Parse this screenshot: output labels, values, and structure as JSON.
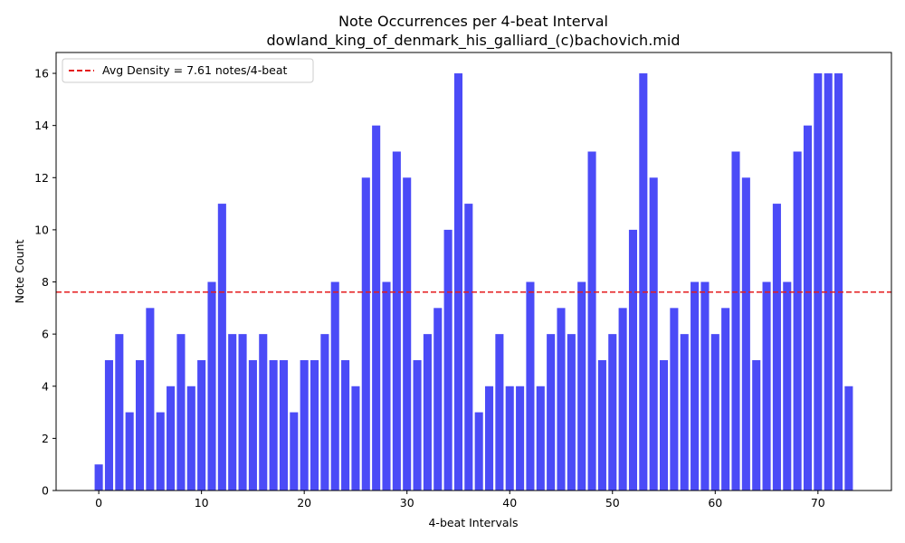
{
  "chart_data": {
    "type": "bar",
    "title": "Note Occurrences per 4-beat Interval",
    "subtitle": "dowland_king_of_denmark_his_galliard_(c)bachovich.mid",
    "xlabel": "4-beat Intervals",
    "ylabel": "Note Count",
    "x": [
      0,
      1,
      2,
      3,
      4,
      5,
      6,
      7,
      8,
      9,
      10,
      11,
      12,
      13,
      14,
      15,
      16,
      17,
      18,
      19,
      20,
      21,
      22,
      23,
      24,
      25,
      26,
      27,
      28,
      29,
      30,
      31,
      32,
      33,
      34,
      35,
      36,
      37,
      38,
      39,
      40,
      41,
      42,
      43,
      44,
      45,
      46,
      47,
      48,
      49,
      50,
      51,
      52,
      53,
      54,
      55,
      56,
      57,
      58,
      59,
      60,
      61,
      62,
      63,
      64,
      65,
      66,
      67,
      68,
      69,
      70,
      71,
      72,
      73
    ],
    "values": [
      1,
      5,
      6,
      3,
      5,
      7,
      3,
      4,
      6,
      4,
      5,
      8,
      11,
      6,
      6,
      5,
      6,
      5,
      5,
      3,
      5,
      5,
      6,
      8,
      5,
      4,
      12,
      14,
      8,
      13,
      12,
      5,
      6,
      7,
      10,
      16,
      11,
      3,
      4,
      6,
      4,
      4,
      8,
      4,
      6,
      7,
      6,
      8,
      13,
      5,
      6,
      7,
      10,
      16,
      12,
      5,
      7,
      6,
      8,
      8,
      6,
      7,
      13,
      12,
      5,
      8,
      11,
      8,
      13,
      14,
      16,
      16,
      16,
      4
    ],
    "xlim": [
      -4.15,
      77.15
    ],
    "ylim": [
      0,
      16.8
    ],
    "xticks": [
      0,
      10,
      20,
      30,
      40,
      50,
      60,
      70
    ],
    "yticks": [
      0,
      2,
      4,
      6,
      8,
      10,
      12,
      14,
      16
    ],
    "bar_color": "#4b4bf7",
    "grid": false,
    "reference_line": {
      "value": 7.61,
      "color": "#e41a1c",
      "style": "dashed",
      "label": "Avg Density = 7.61 notes/4-beat"
    },
    "legend": {
      "placement": "top-left"
    }
  }
}
